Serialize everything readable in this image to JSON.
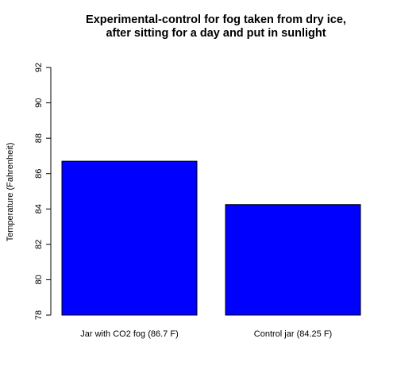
{
  "chart_data": {
    "type": "bar",
    "title": "Experimental-control for fog taken from dry ice,\nafter sitting for a day and put in sunlight",
    "xlabel": "",
    "ylabel": "Temperature (Fahrenheit)",
    "categories": [
      "Jar with CO2 fog   (86.7 F)",
      "Control jar   (84.25 F)"
    ],
    "values": [
      86.7,
      84.25
    ],
    "ylim": [
      78,
      92
    ],
    "yticks": [
      "78",
      "80",
      "82",
      "84",
      "86",
      "88",
      "90",
      "92"
    ],
    "grid": false,
    "bar_color": "#0000ff",
    "bar_border_color": "#000000"
  }
}
